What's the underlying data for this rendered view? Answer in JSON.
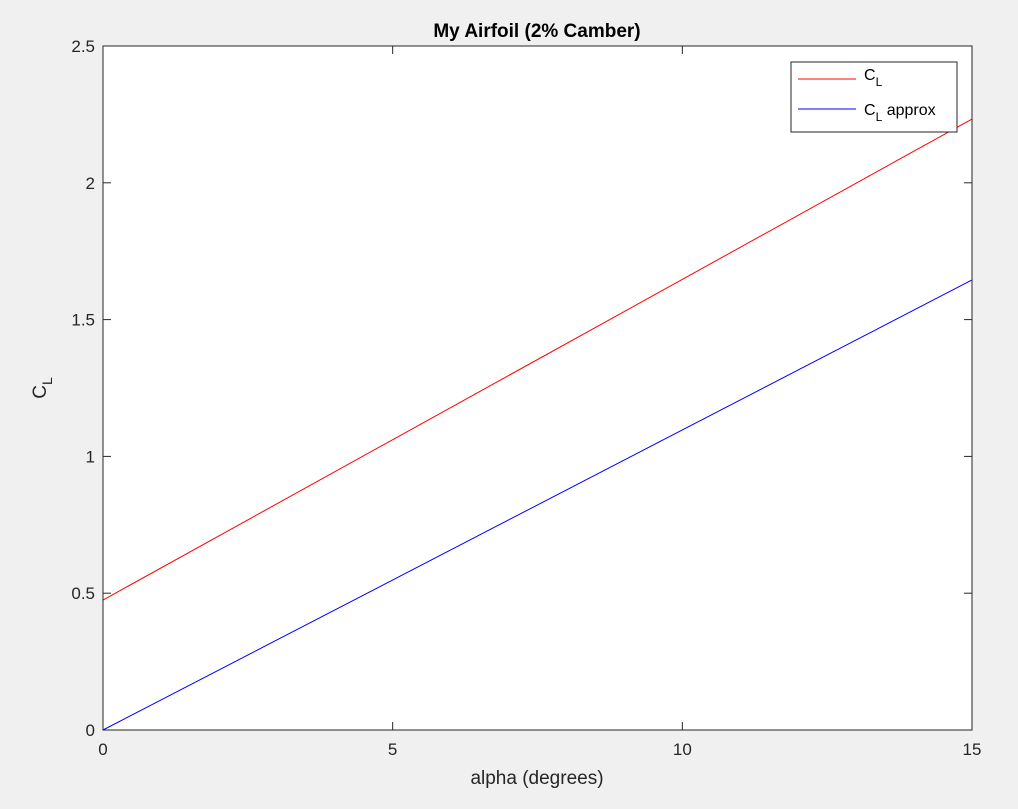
{
  "chart_data": {
    "type": "line",
    "title": "My Airfoil (2% Camber)",
    "xlabel": "alpha (degrees)",
    "ylabel": {
      "base": "C",
      "sub": "L"
    },
    "xlim": [
      0,
      15
    ],
    "ylim": [
      0,
      2.5
    ],
    "xticks": [
      0,
      5,
      10,
      15
    ],
    "xtick_labels": [
      "0",
      "5",
      "10",
      "15"
    ],
    "yticks": [
      0,
      0.5,
      1,
      1.5,
      2,
      2.5
    ],
    "ytick_labels": [
      "0",
      "0.5",
      "1",
      "1.5",
      "2",
      "2.5"
    ],
    "grid": false,
    "legend_position": "top-right",
    "series": [
      {
        "name": "C_L",
        "legend": {
          "base": "C",
          "sub": "L",
          "suffix": ""
        },
        "color": "#ff0000",
        "x": [
          0,
          15
        ],
        "y": [
          0.475,
          2.233
        ]
      },
      {
        "name": "C_L approx",
        "legend": {
          "base": "C",
          "sub": "L",
          "suffix": " approx"
        },
        "color": "#0000ff",
        "x": [
          0,
          15
        ],
        "y": [
          0,
          1.645
        ]
      }
    ]
  }
}
